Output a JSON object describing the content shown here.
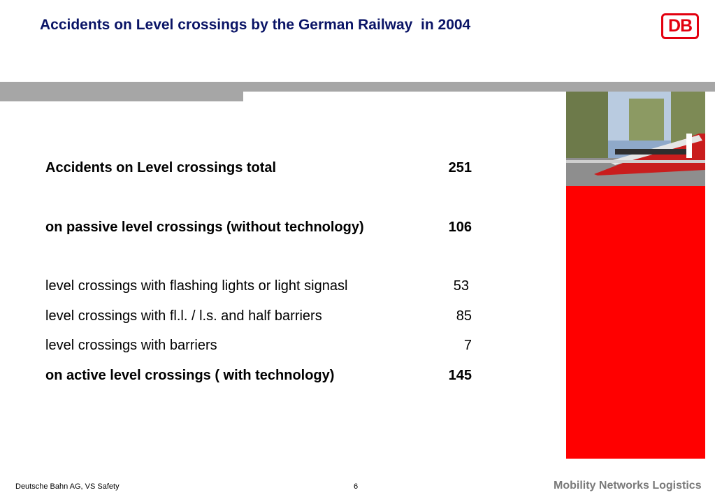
{
  "header": {
    "title": "Accidents on Level crossings by the German Railway  in 2004",
    "logo_text": "DB"
  },
  "colors": {
    "title": "#0a1466",
    "accent_red": "#ff0000",
    "logo_red": "#e3000f",
    "bar_grey": "#a6a6a6"
  },
  "rows": [
    {
      "label": "Accidents on Level crossings total",
      "value": "251",
      "bold": true
    },
    {
      "label": "on passive level crossings (without technology)",
      "value": "106",
      "bold": true
    },
    {
      "label": "level crossings with flashing lights or light signasl",
      "value": "53",
      "bold": false
    },
    {
      "label": "level crossings with fl.l. / l.s. and half barriers",
      "value": "85",
      "bold": false
    },
    {
      "label": "level crossings with barriers",
      "value": "7",
      "bold": false
    },
    {
      "label": "on active level crossings ( with technology)",
      "value": "145",
      "bold": true
    }
  ],
  "footer": {
    "company": "Deutsche Bahn AG,  VS Safety",
    "page": "6",
    "brand": "Mobility Networks Logistics"
  }
}
